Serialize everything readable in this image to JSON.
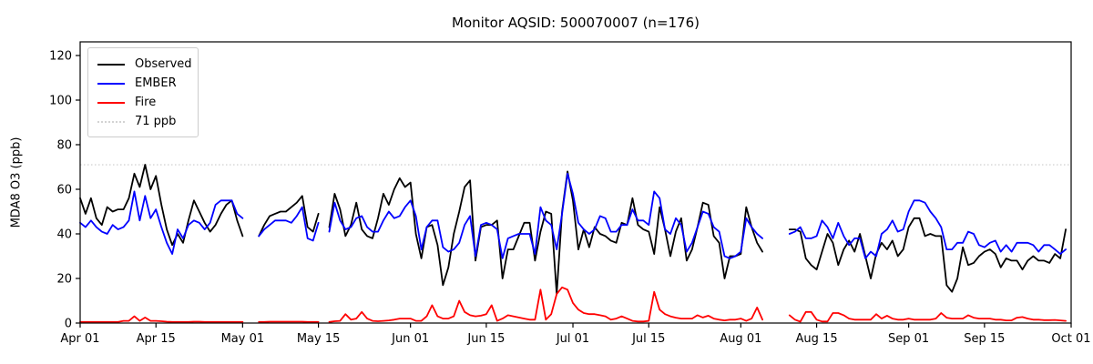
{
  "title": "Monitor AQSID: 500070007 (n=176)",
  "y_axis": {
    "label": "MDA8 O3 (ppb)",
    "ticks": [
      0,
      20,
      40,
      60,
      80,
      100,
      120
    ],
    "lim": [
      0,
      126
    ]
  },
  "x_axis": {
    "ticks": [
      {
        "day": 0,
        "label": "Apr 01"
      },
      {
        "day": 14,
        "label": "Apr 15"
      },
      {
        "day": 30,
        "label": "May 01"
      },
      {
        "day": 44,
        "label": "May 15"
      },
      {
        "day": 61,
        "label": "Jun 01"
      },
      {
        "day": 75,
        "label": "Jun 15"
      },
      {
        "day": 91,
        "label": "Jul 01"
      },
      {
        "day": 105,
        "label": "Jul 15"
      },
      {
        "day": 122,
        "label": "Aug 01"
      },
      {
        "day": 136,
        "label": "Aug 15"
      },
      {
        "day": 153,
        "label": "Sep 01"
      },
      {
        "day": 167,
        "label": "Sep 15"
      },
      {
        "day": 183,
        "label": "Oct 01"
      }
    ]
  },
  "legend": {
    "items": [
      {
        "label": "Observed",
        "color": "#000000",
        "style": "solid"
      },
      {
        "label": "EMBER",
        "color": "#0000ff",
        "style": "solid"
      },
      {
        "label": "Fire",
        "color": "#ff0000",
        "style": "solid"
      },
      {
        "label": "71 ppb",
        "color": "#d3d3d3",
        "style": "dotted"
      }
    ]
  },
  "chart_data": {
    "type": "line",
    "title": "Monitor AQSID: 500070007 (n=176)",
    "xlabel": "",
    "ylabel": "MDA8 O3 (ppb)",
    "x_unit": "days since Apr 01 (daily MDA8 values, Apr 01 - Sep 30, n=176, gaps May 02-03, May 16, Aug 06-09)",
    "n_points": 176,
    "n_days": 183,
    "grid": false,
    "legend_position": "upper left",
    "threshold": {
      "label": "71 ppb",
      "value": 71,
      "color": "#d3d3d3",
      "style": "dotted"
    },
    "series": [
      {
        "name": "Observed",
        "color": "#000000",
        "values": [
          56,
          49,
          56,
          47,
          44,
          52,
          50,
          51,
          51,
          56,
          67,
          61,
          71,
          60,
          66,
          53,
          42,
          35,
          40,
          36,
          46,
          55,
          50,
          45,
          41,
          44,
          49,
          53,
          55,
          46,
          39,
          null,
          null,
          39,
          44,
          48,
          49,
          50,
          50,
          52,
          54,
          57,
          43,
          41,
          49,
          null,
          43,
          58,
          51,
          39,
          44,
          54,
          42,
          39,
          38,
          47,
          58,
          53,
          60,
          65,
          61,
          63,
          40,
          29,
          43,
          44,
          35,
          17,
          25,
          40,
          50,
          61,
          64,
          28,
          43,
          44,
          44,
          46,
          20,
          33,
          33,
          39,
          45,
          45,
          28,
          41,
          50,
          49,
          13,
          50,
          68,
          55,
          33,
          42,
          34,
          43,
          40,
          39,
          37,
          36,
          45,
          44,
          56,
          44,
          42,
          41,
          31,
          52,
          42,
          30,
          41,
          47,
          28,
          33,
          43,
          54,
          53,
          39,
          36,
          20,
          30,
          30,
          31,
          52,
          43,
          36,
          32,
          null,
          null,
          null,
          null,
          42,
          42,
          41,
          29,
          26,
          24,
          32,
          40,
          36,
          26,
          33,
          37,
          32,
          40,
          30,
          20,
          31,
          36,
          33,
          37,
          30,
          33,
          43,
          47,
          47,
          39,
          40,
          39,
          39,
          17,
          14,
          20,
          34,
          26,
          27,
          30,
          32,
          33,
          31,
          25,
          29,
          28,
          28,
          24,
          28,
          30,
          28,
          28,
          27,
          31,
          29,
          42
        ]
      },
      {
        "name": "EMBER",
        "color": "#0000ff",
        "values": [
          45,
          43,
          46,
          43,
          41,
          40,
          44,
          42,
          43,
          46,
          59,
          46,
          57,
          47,
          51,
          43,
          36,
          31,
          42,
          38,
          44,
          46,
          45,
          42,
          45,
          53,
          55,
          55,
          55,
          49,
          47,
          null,
          null,
          39,
          42,
          44,
          46,
          46,
          46,
          45,
          48,
          52,
          38,
          37,
          45,
          null,
          41,
          54,
          46,
          42,
          43,
          47,
          48,
          43,
          41,
          41,
          46,
          50,
          47,
          48,
          52,
          55,
          48,
          33,
          43,
          46,
          46,
          34,
          32,
          33,
          36,
          44,
          48,
          30,
          44,
          45,
          44,
          42,
          29,
          38,
          39,
          40,
          40,
          40,
          31,
          52,
          46,
          44,
          33,
          49,
          67,
          58,
          45,
          42,
          40,
          42,
          48,
          47,
          41,
          41,
          44,
          44,
          51,
          46,
          46,
          44,
          59,
          56,
          42,
          40,
          47,
          44,
          32,
          36,
          43,
          50,
          49,
          43,
          41,
          30,
          29,
          30,
          32,
          47,
          43,
          40,
          38,
          null,
          null,
          null,
          null,
          40,
          41,
          43,
          38,
          38,
          39,
          46,
          43,
          38,
          45,
          39,
          35,
          38,
          38,
          29,
          32,
          30,
          40,
          42,
          46,
          41,
          42,
          50,
          55,
          55,
          54,
          50,
          47,
          43,
          33,
          33,
          36,
          36,
          41,
          40,
          35,
          34,
          36,
          37,
          32,
          35,
          32,
          36,
          36,
          36,
          35,
          32,
          35,
          35,
          33,
          31,
          33
        ]
      },
      {
        "name": "Fire",
        "color": "#ff0000",
        "values": [
          0.5,
          0.5,
          0.5,
          0.5,
          0.5,
          0.5,
          0.5,
          0.5,
          1,
          1,
          3,
          1,
          2.5,
          1,
          1,
          0.8,
          0.6,
          0.5,
          0.5,
          0.5,
          0.5,
          0.6,
          0.6,
          0.5,
          0.5,
          0.5,
          0.5,
          0.5,
          0.5,
          0.5,
          0.5,
          null,
          null,
          0.5,
          0.5,
          0.6,
          0.6,
          0.6,
          0.6,
          0.6,
          0.6,
          0.6,
          0.5,
          0.5,
          0.5,
          null,
          0.5,
          0.8,
          1,
          4,
          1.5,
          2,
          5,
          2,
          1,
          0.8,
          1,
          1.2,
          1.5,
          2,
          2,
          2,
          1,
          1,
          3,
          8,
          3,
          2,
          2,
          3,
          10,
          5,
          3.5,
          3,
          3.3,
          4,
          8,
          1,
          2,
          3.5,
          3,
          2.5,
          2,
          1.5,
          1.5,
          15,
          1.5,
          4,
          13,
          16,
          15,
          9,
          6,
          4.5,
          4,
          4,
          3.5,
          3,
          1.5,
          2,
          3,
          2,
          1,
          0.7,
          0.7,
          1,
          14,
          6,
          4,
          3,
          2.4,
          2,
          2,
          2,
          3.5,
          2.5,
          3.3,
          2,
          1.5,
          1.2,
          1.5,
          1.5,
          2,
          1,
          2,
          7,
          1.5,
          null,
          null,
          null,
          null,
          3.5,
          1.5,
          0.6,
          5,
          5,
          1.5,
          0.7,
          0.7,
          4.5,
          4.5,
          3.5,
          2,
          1.5,
          1.5,
          1.5,
          1.5,
          4,
          2,
          3.3,
          2,
          1.5,
          1.5,
          2,
          1.5,
          1.5,
          1.5,
          1.5,
          2,
          4.5,
          2.4,
          2,
          2,
          2,
          3.5,
          2.4,
          2,
          2,
          2,
          1.5,
          1.5,
          1.2,
          1.2,
          2.4,
          2.7,
          2,
          1.5,
          1.5,
          1.3,
          1.3,
          1.4,
          1.2,
          1
        ]
      }
    ]
  }
}
